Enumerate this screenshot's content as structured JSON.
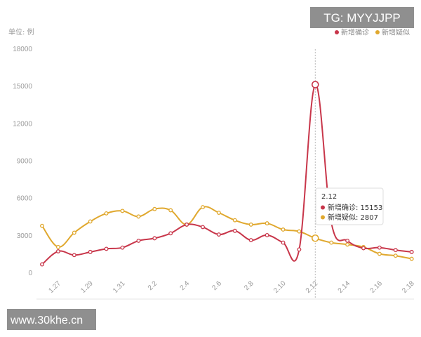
{
  "chart_data": {
    "type": "line",
    "unit_label": "单位: 例",
    "title": "",
    "xlabel": "",
    "ylabel": "",
    "ylim": [
      0,
      18000
    ],
    "y_ticks": [
      "0",
      "3000",
      "6000",
      "9000",
      "12000",
      "15000",
      "18000"
    ],
    "x_ticks": [
      "1.27",
      "1.29",
      "1.31",
      "2.2",
      "2.4",
      "2.6",
      "2.8",
      "2.10",
      "2.12",
      "2.14",
      "2.16",
      "2.18"
    ],
    "grid": false,
    "legend_position": "top-right",
    "categories": [
      "1.26",
      "1.27",
      "1.28",
      "1.29",
      "1.30",
      "1.31",
      "2.1",
      "2.2",
      "2.3",
      "2.4",
      "2.5",
      "2.6",
      "2.7",
      "2.8",
      "2.9",
      "2.10",
      "2.11",
      "2.12",
      "2.13",
      "2.14",
      "2.15",
      "2.16",
      "2.17",
      "2.18"
    ],
    "series": [
      {
        "name": "新增确诊",
        "color": "#c8364a",
        "values": [
          700,
          1750,
          1450,
          1700,
          1950,
          2050,
          2600,
          2800,
          3200,
          3900,
          3700,
          3100,
          3400,
          2650,
          3050,
          2450,
          1900,
          15153,
          4050,
          2600,
          2000,
          2050,
          1850,
          1700
        ]
      },
      {
        "name": "新增疑似",
        "color": "#e0a82e",
        "values": [
          3800,
          2100,
          3250,
          4150,
          4800,
          5000,
          4550,
          5150,
          5050,
          3900,
          5300,
          4850,
          4250,
          3900,
          4000,
          3500,
          3350,
          2807,
          2450,
          2300,
          2100,
          1550,
          1400,
          1150
        ]
      }
    ],
    "crosshair_category": "2.12",
    "tooltip": {
      "title": "2.12",
      "rows": [
        {
          "label": "新增确诊: 15153",
          "color": "#c8364a"
        },
        {
          "label": "新增疑似: 2807",
          "color": "#e0a82e"
        }
      ]
    }
  },
  "watermarks": {
    "top_right": "TG: MYYJJPP",
    "bottom_left": "www.30khe.cn"
  }
}
